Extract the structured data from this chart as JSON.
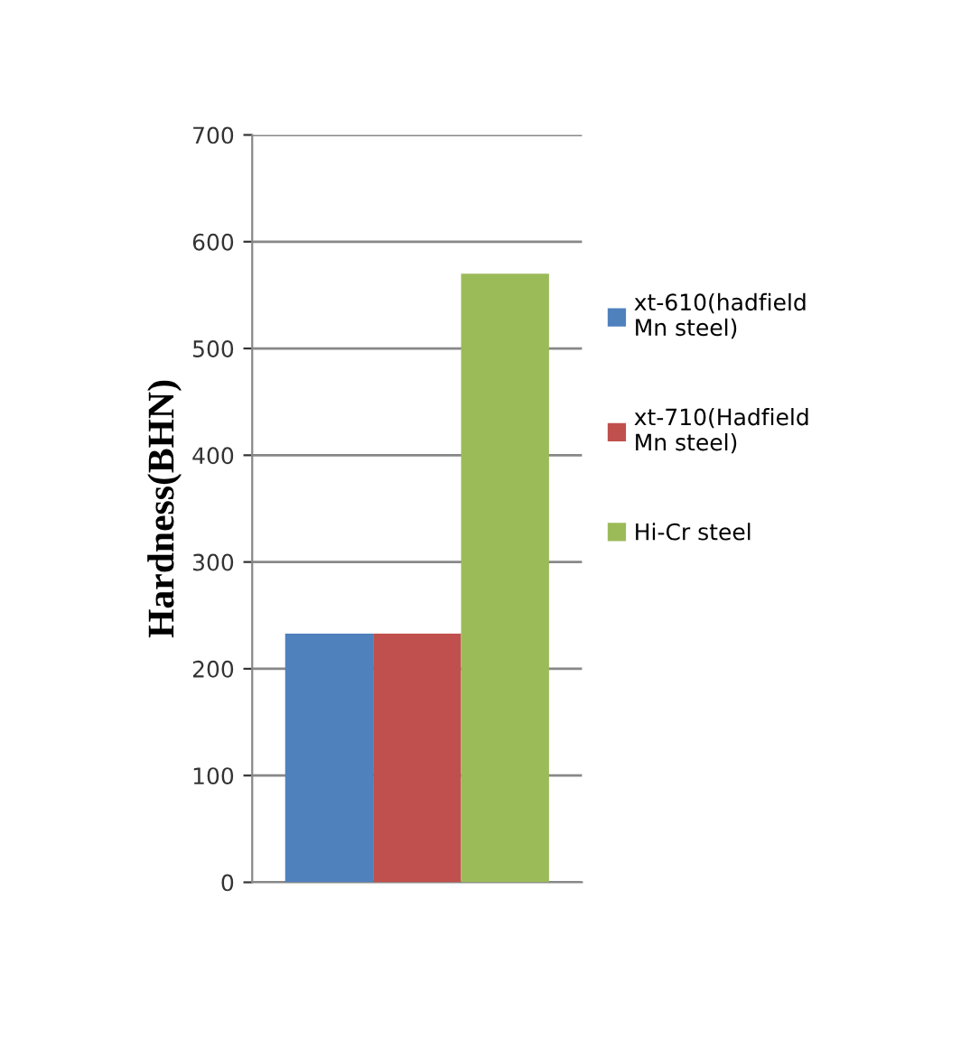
{
  "chart_data": {
    "type": "bar",
    "ylabel": "Hardness(BHN)",
    "categories": [
      null
    ],
    "series": [
      {
        "name": "xt-610(hadfield Mn steel)",
        "color": "#4f81bd",
        "values": [
          233
        ]
      },
      {
        "name": "xt-710(Hadfield Mn steel)",
        "color": "#c0504d",
        "values": [
          233
        ]
      },
      {
        "name": "Hi-Cr steel",
        "color": "#9bbb59",
        "values": [
          570
        ]
      }
    ],
    "ylim": [
      0,
      700
    ],
    "yticks": [
      0,
      100,
      200,
      300,
      400,
      500,
      600,
      700
    ],
    "grid": "y",
    "legend": "right"
  }
}
